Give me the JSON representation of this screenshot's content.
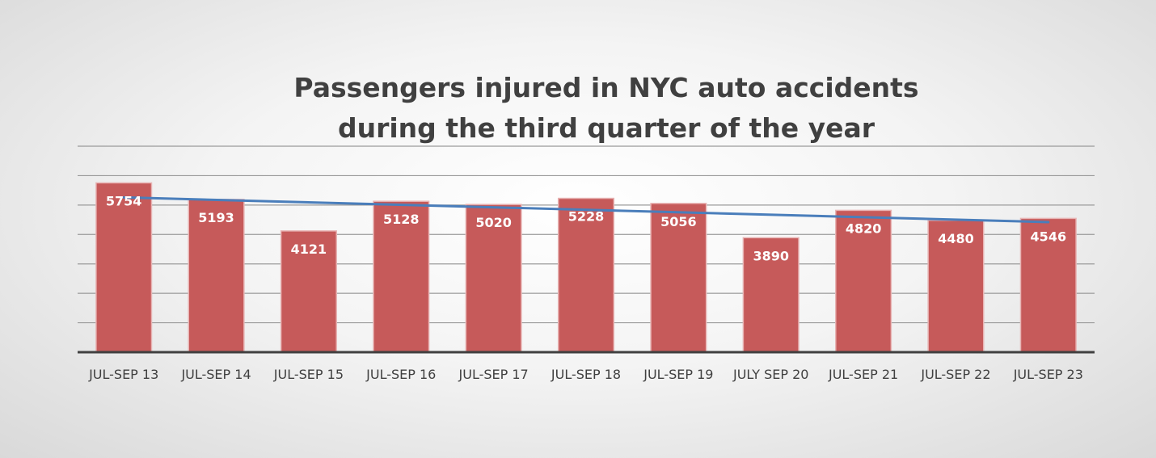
{
  "chart_data": {
    "type": "bar",
    "title_lines": [
      "Passengers injured in NYC auto accidents",
      "during the third quarter of the year"
    ],
    "categories": [
      "JUL-SEP 13",
      "JUL-SEP 14",
      "JUL-SEP 15",
      "JUL-SEP 16",
      "JUL-SEP 17",
      "JUL-SEP 18",
      "JUL-SEP 19",
      "JULY SEP 20",
      "JUL-SEP 21",
      "JUL-SEP 22",
      "JUL-SEP 23"
    ],
    "values": [
      5754,
      5193,
      4121,
      5128,
      5020,
      5228,
      5056,
      3890,
      4820,
      4480,
      4546
    ],
    "data_labels": [
      "5754",
      "5193",
      "4121",
      "5128",
      "5020",
      "5228",
      "5056",
      "3890",
      "4820",
      "4480",
      "4546"
    ],
    "trendline": "linear",
    "ylim": [
      0,
      7000
    ],
    "y_grid_step": 1000,
    "y_axis_labels_shown": false,
    "grid": true,
    "legend": "none",
    "colors": {
      "bar": "#c65a5a",
      "bar_edge": "#e8b4b4",
      "trendline": "#4a7ebb",
      "grid": "#9a9a9a",
      "axis": "#404040",
      "title": "#404040"
    }
  }
}
